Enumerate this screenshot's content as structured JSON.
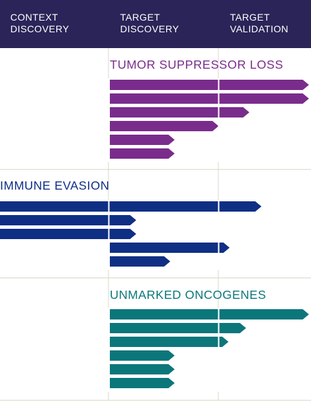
{
  "header": {
    "columns": [
      {
        "line1": "CONTEXT",
        "line2": "DISCOVERY"
      },
      {
        "line1": "TARGET",
        "line2": "DISCOVERY"
      },
      {
        "line1": "TARGET",
        "line2": "VALIDATION"
      }
    ]
  },
  "colors": {
    "header_bg": "#2a2458",
    "tumor": "#7a2c8c",
    "immune": "#0f2f85",
    "unmarked": "#0b777b",
    "divider": "#d9d9c9"
  },
  "chart_data": {
    "type": "bar",
    "stages": [
      "CONTEXT DISCOVERY",
      "TARGET DISCOVERY",
      "TARGET VALIDATION"
    ],
    "groups": [
      {
        "name": "TUMOR SUPPRESSOR LOSS",
        "color": "#7a2c8c",
        "bars": [
          {
            "start": 1,
            "end": 3.0
          },
          {
            "start": 1,
            "end": 3.0
          },
          {
            "start": 1,
            "end": 2.27
          },
          {
            "start": 1,
            "end": 1.99
          },
          {
            "start": 1,
            "end": 1.59
          },
          {
            "start": 1,
            "end": 1.59
          }
        ]
      },
      {
        "name": "IMMUNE EVASION",
        "color": "#0f2f85",
        "bars": [
          {
            "start": 0,
            "end": 2.38
          },
          {
            "start": 0,
            "end": 1.24
          },
          {
            "start": 0,
            "end": 1.24
          },
          {
            "start": 1,
            "end": 2.09
          },
          {
            "start": 1,
            "end": 1.55
          }
        ]
      },
      {
        "name": "UNMARKED ONCOGENES",
        "color": "#0b777b",
        "bars": [
          {
            "start": 1,
            "end": 3.0
          },
          {
            "start": 1,
            "end": 2.24
          },
          {
            "start": 1,
            "end": 2.08
          },
          {
            "start": 1,
            "end": 1.59
          },
          {
            "start": 1,
            "end": 1.59
          },
          {
            "start": 1,
            "end": 1.59
          }
        ]
      }
    ]
  }
}
